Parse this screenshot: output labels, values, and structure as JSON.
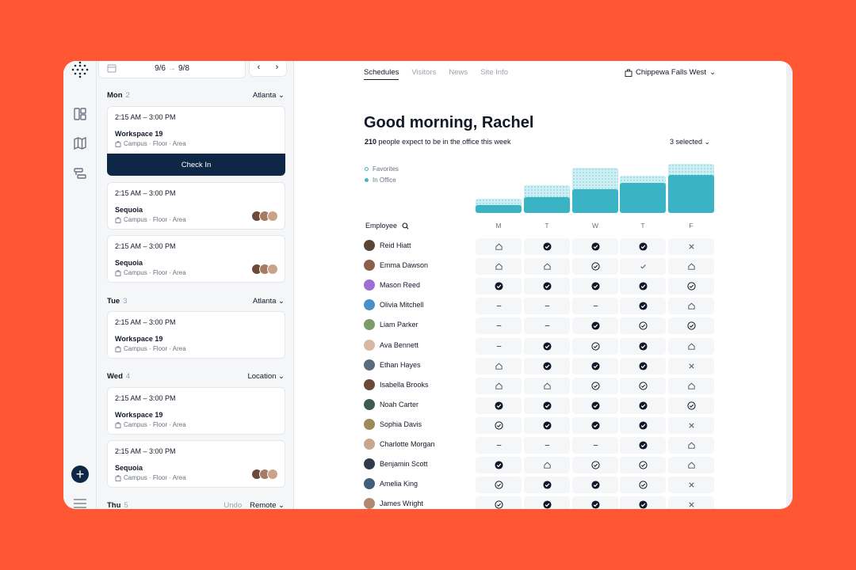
{
  "brand": {
    "accent": "#0F2747",
    "teal": "#3AB4C4",
    "background": "#FF5733"
  },
  "rail": {
    "icons": [
      "logo-icon",
      "dashboard-icon",
      "map-icon",
      "layout-icon",
      "add-icon",
      "menu-icon"
    ]
  },
  "schedule": {
    "date_from": "9/6",
    "date_to": "9/8",
    "days": [
      {
        "name": "Mon",
        "count": "2",
        "location": "Atlanta"
      },
      {
        "name": "Tue",
        "count": "3",
        "location": "Atlanta"
      },
      {
        "name": "Wed",
        "count": "4",
        "location": "Location"
      },
      {
        "name": "Thu",
        "count": "5",
        "location": "Remote",
        "undo": "Undo"
      }
    ],
    "cards": [
      {
        "time": "2:15 AM – 3:00 PM",
        "workspace": "Workspace 19",
        "meta": "Campus · Floor · Area"
      },
      {
        "time": "2:15 AM – 3:00 PM",
        "workspace": "Sequoia",
        "meta": "Campus · Floor · Area"
      },
      {
        "time": "2:15 AM – 3:00 PM",
        "workspace": "Sequoia",
        "meta": "Campus · Floor · Area"
      },
      {
        "time": "2:15 AM – 3:00 PM",
        "workspace": "Workspace 19",
        "meta": "Campus · Floor · Area"
      },
      {
        "time": "2:15 AM – 3:00 PM",
        "workspace": "Workspace 19",
        "meta": "Campus · Floor · Area"
      },
      {
        "time": "2:15 AM – 3:00 PM",
        "workspace": "Sequoia",
        "meta": "Campus · Floor · Area"
      }
    ],
    "check_in_label": "Check In"
  },
  "main": {
    "tabs": [
      "Schedules",
      "Visitors",
      "News",
      "Site Info"
    ],
    "site": "Chippewa Falls West",
    "greeting": "Good morning, Rachel",
    "count": "210",
    "subtitle": "people expect to be in the office this week",
    "selected": "3 selected",
    "legend": {
      "favorites": "Favorites",
      "in_office": "In Office"
    },
    "employee_header": "Employee",
    "days": [
      "M",
      "T",
      "W",
      "T",
      "F"
    ]
  },
  "chart_data": {
    "type": "bar",
    "categories": [
      "M",
      "T",
      "W",
      "T",
      "F"
    ],
    "series": [
      {
        "name": "Favorites",
        "values": [
          18,
          35,
          57,
          47,
          62
        ]
      },
      {
        "name": "In Office",
        "values": [
          10,
          20,
          30,
          38,
          48
        ]
      }
    ],
    "ylim": [
      0,
      64
    ]
  },
  "employees": [
    {
      "name": "Reid Hiatt",
      "status": [
        "home",
        "check",
        "check",
        "check",
        "x"
      ]
    },
    {
      "name": "Emma Dawson",
      "status": [
        "home",
        "home",
        "circle",
        "tick",
        "home"
      ]
    },
    {
      "name": "Mason Reed",
      "status": [
        "check",
        "check",
        "check",
        "check",
        "circle"
      ]
    },
    {
      "name": "Olivia Mitchell",
      "status": [
        "dash",
        "dash",
        "dash",
        "check",
        "home"
      ]
    },
    {
      "name": "Liam Parker",
      "status": [
        "dash",
        "dash",
        "check",
        "circle",
        "circle"
      ]
    },
    {
      "name": "Ava Bennett",
      "status": [
        "dash",
        "check",
        "circle",
        "check",
        "home"
      ]
    },
    {
      "name": "Ethan Hayes",
      "status": [
        "home",
        "check",
        "check",
        "check",
        "x"
      ]
    },
    {
      "name": "Isabella Brooks",
      "status": [
        "home",
        "home",
        "circle",
        "circle",
        "home"
      ]
    },
    {
      "name": "Noah Carter",
      "status": [
        "check",
        "check",
        "check",
        "check",
        "circle"
      ]
    },
    {
      "name": "Sophia Davis",
      "status": [
        "circle",
        "check",
        "check",
        "check",
        "x"
      ]
    },
    {
      "name": "Charlotte Morgan",
      "status": [
        "dash",
        "dash",
        "dash",
        "check",
        "home"
      ]
    },
    {
      "name": "Benjamin Scott",
      "status": [
        "check",
        "home",
        "circle",
        "circle",
        "home"
      ]
    },
    {
      "name": "Amelia King",
      "status": [
        "circle",
        "check",
        "check",
        "circle",
        "x"
      ]
    },
    {
      "name": "James Wright",
      "status": [
        "circle",
        "check",
        "check",
        "check",
        "x"
      ]
    }
  ]
}
